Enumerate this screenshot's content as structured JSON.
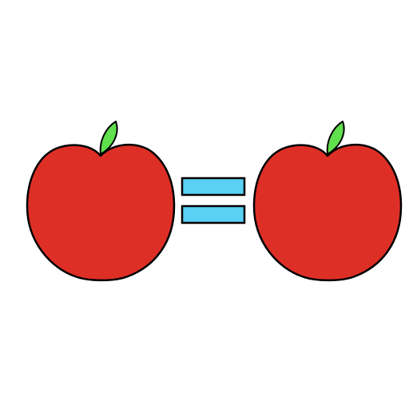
{
  "colors": {
    "background": "#ffffff",
    "apple_fill": "#de2f27",
    "leaf_fill": "#5fe04c",
    "equals_fill": "#5ad0f5",
    "outline": "#000000"
  },
  "icons": {
    "left": "apple-icon",
    "middle": "equals-sign-icon",
    "right": "apple-icon"
  }
}
